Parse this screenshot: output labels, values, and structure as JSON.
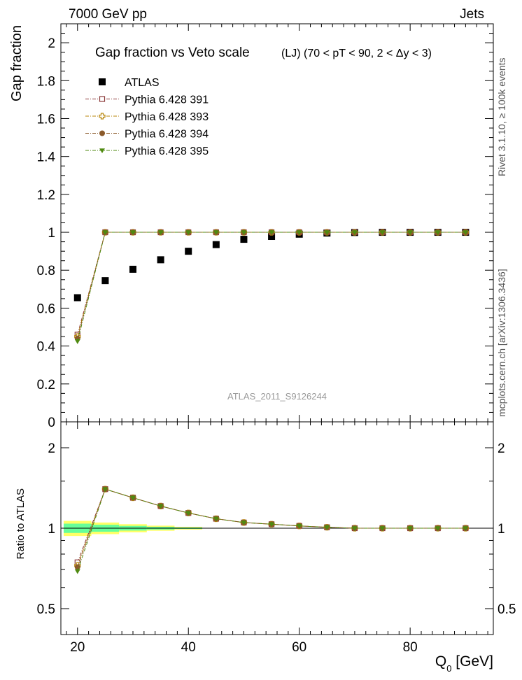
{
  "header": {
    "energy_label": "7000 GeV pp",
    "process_label": "Jets"
  },
  "side_labels": {
    "rivet": "Rivet 3.1.10, ≥ 100k events",
    "mcplots": "mcplots.cern.ch [arXiv:1306.3436]"
  },
  "chart_data": [
    {
      "type": "scatter",
      "panel": "main",
      "title": "Gap fraction vs Veto scale",
      "subtitle": "(LJ) (70 < pT <  90, 2 < Δy < 3)",
      "analysis_tag": "ATLAS_2011_S9126244",
      "ylabel": "Gap fraction",
      "xlabel": "",
      "xlim": [
        17,
        95
      ],
      "ylim": [
        0,
        2.1
      ],
      "x_ticks": [
        20,
        40,
        60,
        80
      ],
      "y_ticks": [
        0,
        0.2,
        0.4,
        0.6,
        0.8,
        1,
        1.2,
        1.4,
        1.6,
        1.8,
        2
      ],
      "y_tick_labels": [
        "0",
        "0.2",
        "0.4",
        "0.6",
        "0.8",
        "1",
        "1.2",
        "1.4",
        "1.6",
        "1.8",
        "2"
      ],
      "legend_position": "top-left",
      "x": [
        20,
        25,
        30,
        35,
        40,
        45,
        50,
        55,
        60,
        65,
        70,
        75,
        80,
        85,
        90
      ],
      "series": [
        {
          "name": "ATLAS",
          "marker": "filled-square",
          "color": "#000000",
          "values": [
            0.655,
            0.745,
            0.805,
            0.855,
            0.9,
            0.935,
            0.963,
            0.978,
            0.99,
            0.996,
            0.999,
            1.0,
            1.0,
            1.0,
            1.0
          ]
        },
        {
          "name": "Pythia 6.428 391",
          "marker": "open-square",
          "color": "#8b3a3a",
          "values": [
            0.46,
            1.0,
            1.0,
            1.0,
            1.0,
            1.0,
            1.0,
            1.0,
            1.0,
            1.0,
            1.0,
            1.0,
            1.0,
            1.0,
            1.0
          ]
        },
        {
          "name": "Pythia 6.428 393",
          "marker": "open-cross",
          "color": "#b8860b",
          "values": [
            0.45,
            1.0,
            1.0,
            1.0,
            1.0,
            1.0,
            1.0,
            1.0,
            1.0,
            1.0,
            1.0,
            1.0,
            1.0,
            1.0,
            1.0
          ]
        },
        {
          "name": "Pythia 6.428 394",
          "marker": "filled-circle",
          "color": "#8b5a2b",
          "values": [
            0.44,
            1.0,
            1.0,
            1.0,
            1.0,
            1.0,
            1.0,
            1.0,
            1.0,
            1.0,
            1.0,
            1.0,
            1.0,
            1.0,
            1.0
          ]
        },
        {
          "name": "Pythia 6.428 395",
          "marker": "filled-triangle-down",
          "color": "#4f8a10",
          "values": [
            0.425,
            1.0,
            1.0,
            1.0,
            1.0,
            1.0,
            1.0,
            1.0,
            1.0,
            1.0,
            1.0,
            1.0,
            1.0,
            1.0,
            1.0
          ]
        }
      ]
    },
    {
      "type": "scatter",
      "panel": "ratio",
      "ylabel": "Ratio to ATLAS",
      "xlabel": "Q0 [GeV]",
      "xlabel_main": "Q",
      "xlabel_sub": "0",
      "xlabel_unit": " [GeV]",
      "y_scale": "log",
      "xlim": [
        17,
        95
      ],
      "ylim": [
        0.4,
        2.5
      ],
      "x_ticks": [
        20,
        40,
        60,
        80
      ],
      "y_ticks": [
        0.5,
        1,
        2
      ],
      "y_tick_labels": [
        "0.5",
        "1",
        "2"
      ],
      "reference_band": {
        "color_inner": "#66ff99",
        "color_outer": "#ffff66",
        "x_edges": [
          17.5,
          22.5,
          27.5,
          32.5,
          37.5,
          42.5
        ],
        "half_width_inner": [
          0.04,
          0.03,
          0.02,
          0.012,
          0.006
        ],
        "half_width_outer": [
          0.065,
          0.05,
          0.035,
          0.022,
          0.012
        ]
      },
      "x": [
        20,
        25,
        30,
        35,
        40,
        45,
        50,
        55,
        60,
        65,
        70,
        75,
        80,
        85,
        90
      ],
      "series": [
        {
          "name": "Pythia 6.428 391",
          "marker": "open-square",
          "color": "#8b3a3a",
          "values": [
            0.745,
            1.4,
            1.3,
            1.21,
            1.14,
            1.085,
            1.05,
            1.035,
            1.02,
            1.008,
            1.0,
            1.0,
            1.0,
            1.0,
            1.0
          ]
        },
        {
          "name": "Pythia 6.428 393",
          "marker": "open-cross",
          "color": "#b8860b",
          "values": [
            0.725,
            1.4,
            1.3,
            1.21,
            1.14,
            1.085,
            1.05,
            1.035,
            1.02,
            1.008,
            1.0,
            1.0,
            1.0,
            1.0,
            1.0
          ]
        },
        {
          "name": "Pythia 6.428 394",
          "marker": "filled-circle",
          "color": "#8b5a2b",
          "values": [
            0.715,
            1.4,
            1.3,
            1.21,
            1.14,
            1.085,
            1.05,
            1.035,
            1.02,
            1.008,
            1.0,
            1.0,
            1.0,
            1.0,
            1.0
          ]
        },
        {
          "name": "Pythia 6.428 395",
          "marker": "filled-triangle-down",
          "color": "#4f8a10",
          "values": [
            0.69,
            1.4,
            1.3,
            1.21,
            1.14,
            1.085,
            1.05,
            1.035,
            1.02,
            1.008,
            1.0,
            1.0,
            1.0,
            1.0,
            1.0
          ]
        }
      ]
    }
  ]
}
